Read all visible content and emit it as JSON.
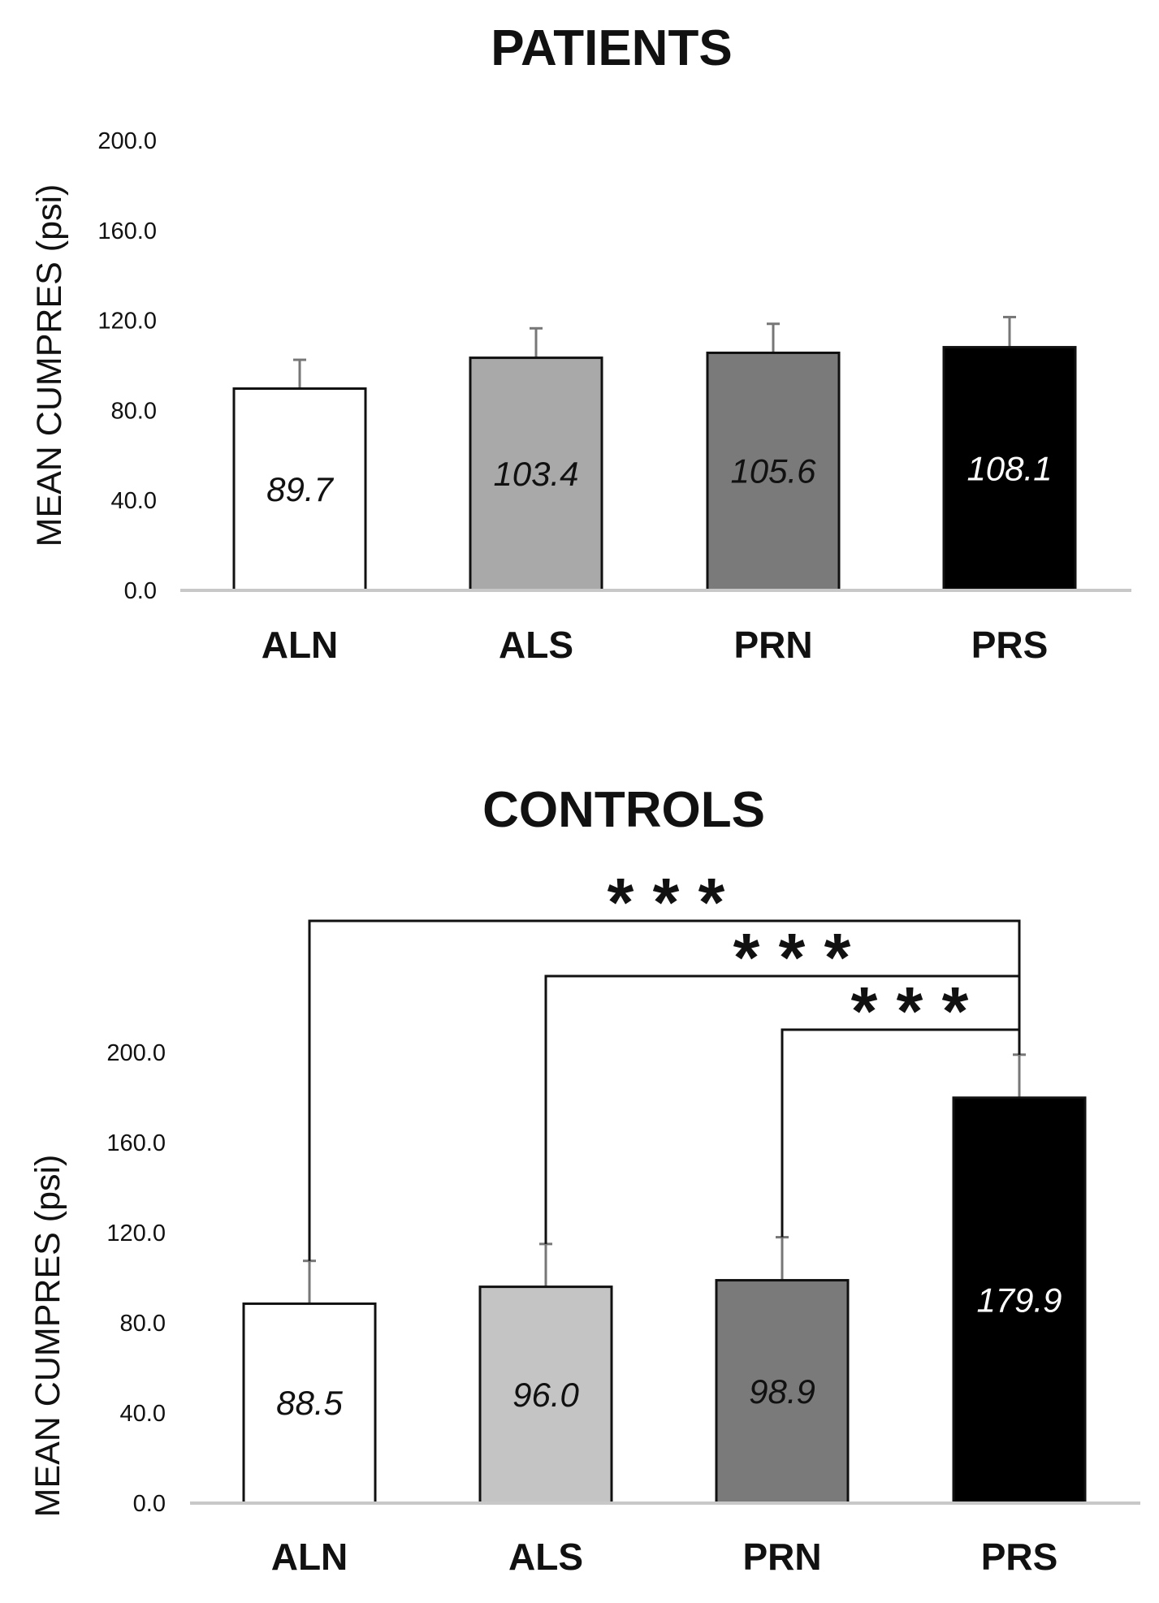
{
  "chart_data": [
    {
      "type": "bar",
      "title": "PATIENTS",
      "xlabel": "",
      "ylabel": "MEAN CUMPRES (psi)",
      "ylim": [
        0,
        200
      ],
      "yticks": [
        "0.0",
        "40.0",
        "80.0",
        "120.0",
        "160.0",
        "200.0"
      ],
      "categories": [
        "ALN",
        "ALS",
        "PRN",
        "PRS"
      ],
      "values": [
        89.7,
        103.4,
        105.6,
        108.1
      ],
      "value_labels": [
        "89.7",
        "103.4",
        "105.6",
        "108.1"
      ],
      "error_upper": [
        102.5,
        116.5,
        118.5,
        121.5
      ],
      "bar_colors": [
        "#ffffff",
        "#a9a9a9",
        "#7a7a7a",
        "#000000"
      ],
      "label_colors": [
        "#111111",
        "#111111",
        "#111111",
        "#ffffff"
      ],
      "grid": false,
      "significance": []
    },
    {
      "type": "bar",
      "title": "CONTROLS",
      "xlabel": "",
      "ylabel": "MEAN CUMPRES (psi)",
      "ylim": [
        0,
        200
      ],
      "yticks": [
        "0.0",
        "40.0",
        "80.0",
        "120.0",
        "160.0",
        "200.0"
      ],
      "categories": [
        "ALN",
        "ALS",
        "PRN",
        "PRS"
      ],
      "values": [
        88.5,
        96.0,
        98.9,
        179.9
      ],
      "value_labels": [
        "88.5",
        "96.0",
        "98.9",
        "179.9"
      ],
      "error_upper": [
        107.5,
        115.0,
        118.0,
        199.0
      ],
      "bar_colors": [
        "#ffffff",
        "#c4c4c4",
        "#7a7a7a",
        "#000000"
      ],
      "label_colors": [
        "#111111",
        "#111111",
        "#111111",
        "#ffffff"
      ],
      "grid": false,
      "significance": [
        {
          "from": "ALN",
          "to": "PRS",
          "label": "* * *"
        },
        {
          "from": "ALS",
          "to": "PRS",
          "label": "* * *"
        },
        {
          "from": "PRN",
          "to": "PRS",
          "label": "* * *"
        }
      ]
    }
  ]
}
